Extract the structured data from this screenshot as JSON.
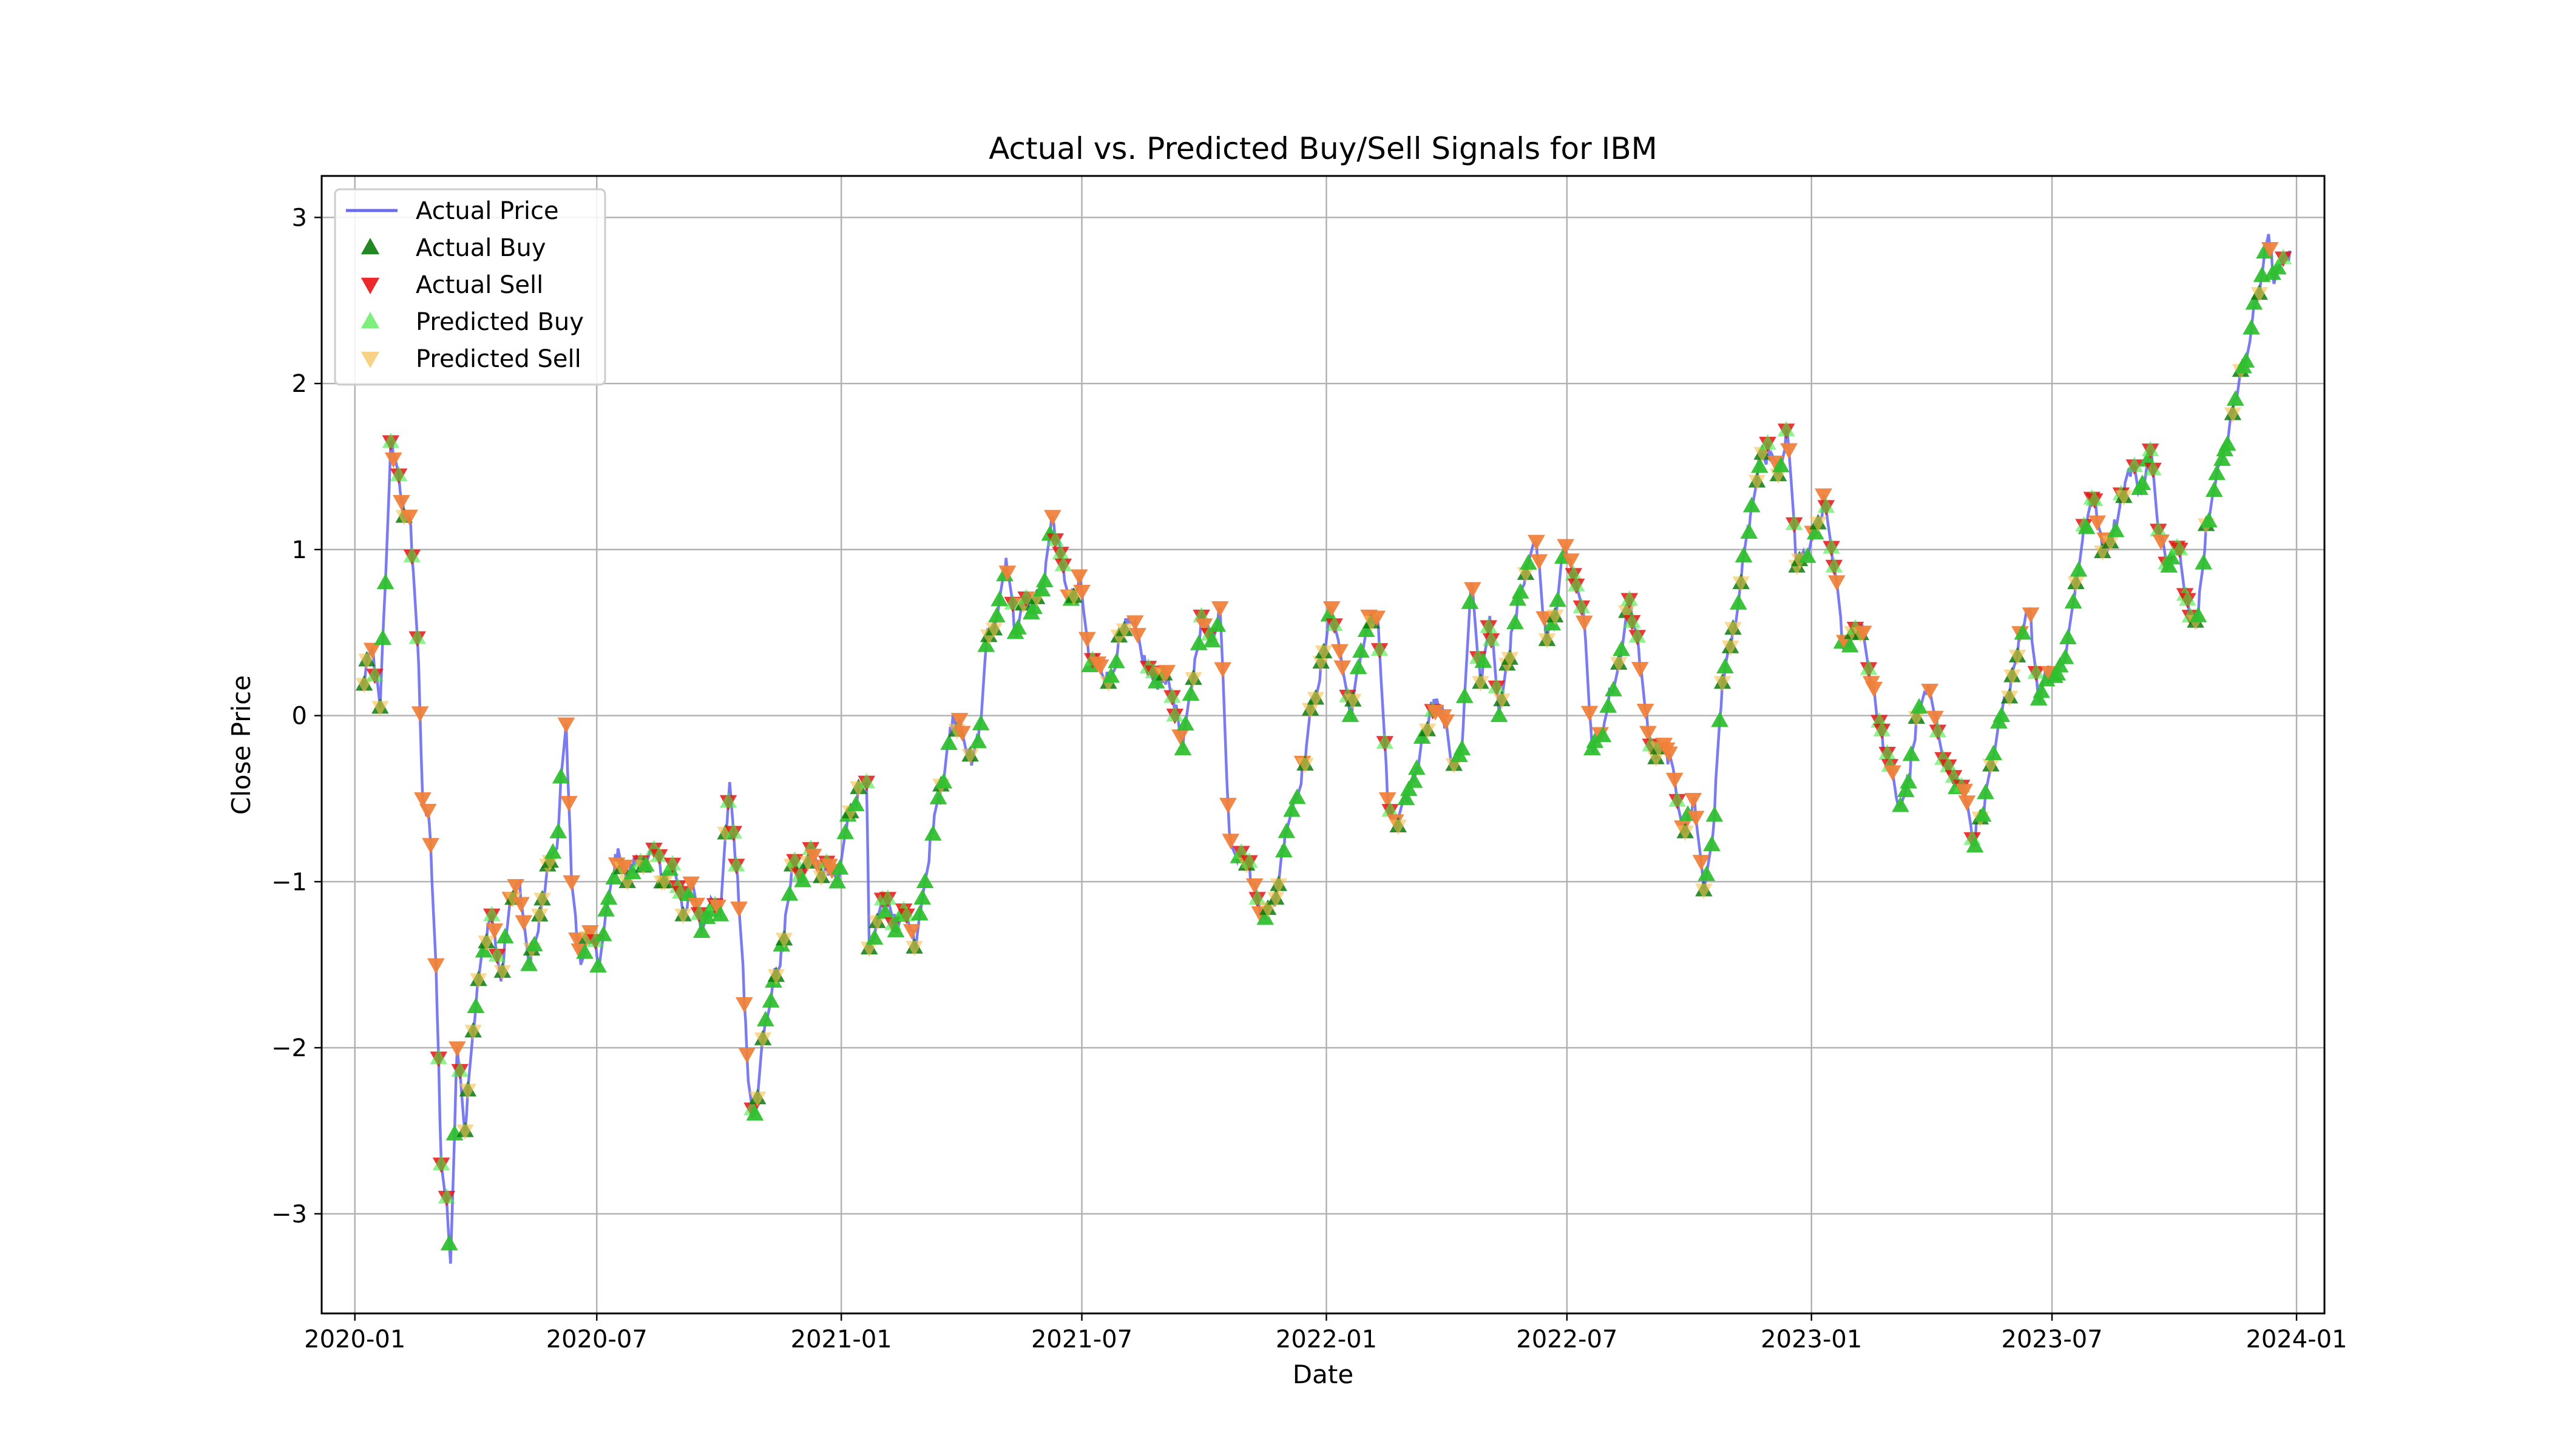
{
  "chart_data": {
    "type": "line",
    "title": "Actual vs. Predicted Buy/Sell Signals for IBM",
    "xlabel": "Date",
    "ylabel": "Close Price",
    "x_ticks": [
      "2020-01",
      "2020-07",
      "2021-01",
      "2021-07",
      "2022-01",
      "2022-07",
      "2023-01",
      "2023-07",
      "2024-01"
    ],
    "y_ticks": [
      "3",
      "2",
      "1",
      "0",
      "−1",
      "−2",
      "−3"
    ],
    "y_tick_values": [
      3,
      2,
      1,
      0,
      -1,
      -2,
      -3
    ],
    "xlim": [
      "2019-12-07",
      "2024-01-22"
    ],
    "ylim": [
      -3.6,
      3.25
    ],
    "grid": true,
    "legend_position": "top-left",
    "colors": {
      "actual_price": "#6b6bf0",
      "actual_buy": "#0b7a0b",
      "actual_sell": "#e81313",
      "predicted_buy": "#44e844",
      "predicted_sell": "#f5bf50"
    },
    "legend": [
      {
        "label": "Actual Price",
        "marker": "line",
        "color_key": "actual_price"
      },
      {
        "label": "Actual Buy",
        "marker": "triangle-up",
        "color_key": "actual_buy"
      },
      {
        "label": "Actual Sell",
        "marker": "triangle-down",
        "color_key": "actual_sell"
      },
      {
        "label": "Predicted Buy",
        "marker": "triangle-up",
        "color_key": "predicted_buy"
      },
      {
        "label": "Predicted Sell",
        "marker": "triangle-down",
        "color_key": "predicted_sell"
      }
    ],
    "series": [
      {
        "name": "Actual Price",
        "points": [
          [
            "2020-01-06",
            0.15
          ],
          [
            "2020-01-14",
            0.4
          ],
          [
            "2020-01-20",
            0.05
          ],
          [
            "2020-01-24",
            0.8
          ],
          [
            "2020-01-28",
            1.65
          ],
          [
            "2020-02-03",
            1.45
          ],
          [
            "2020-02-07",
            1.2
          ],
          [
            "2020-02-12",
            1.15
          ],
          [
            "2020-02-18",
            0.3
          ],
          [
            "2020-02-21",
            -0.5
          ],
          [
            "2020-02-26",
            -0.65
          ],
          [
            "2020-03-02",
            -1.5
          ],
          [
            "2020-03-06",
            -2.7
          ],
          [
            "2020-03-10",
            -2.9
          ],
          [
            "2020-03-13",
            -3.3
          ],
          [
            "2020-03-18",
            -2.0
          ],
          [
            "2020-03-24",
            -2.5
          ],
          [
            "2020-03-30",
            -1.9
          ],
          [
            "2020-04-06",
            -1.4
          ],
          [
            "2020-04-13",
            -1.2
          ],
          [
            "2020-04-20",
            -1.6
          ],
          [
            "2020-04-27",
            -1.1
          ],
          [
            "2020-05-04",
            -1.0
          ],
          [
            "2020-05-11",
            -1.5
          ],
          [
            "2020-05-18",
            -1.3
          ],
          [
            "2020-05-25",
            -0.9
          ],
          [
            "2020-06-01",
            -0.8
          ],
          [
            "2020-06-05",
            -0.3
          ],
          [
            "2020-06-08",
            -0.05
          ],
          [
            "2020-06-12",
            -1.0
          ],
          [
            "2020-06-19",
            -1.5
          ],
          [
            "2020-06-26",
            -1.3
          ],
          [
            "2020-07-03",
            -1.5
          ],
          [
            "2020-07-10",
            -1.1
          ],
          [
            "2020-07-17",
            -0.8
          ],
          [
            "2020-07-24",
            -1.0
          ],
          [
            "2020-07-31",
            -0.85
          ],
          [
            "2020-08-07",
            -0.9
          ],
          [
            "2020-08-14",
            -0.8
          ],
          [
            "2020-08-21",
            -1.0
          ],
          [
            "2020-08-28",
            -0.9
          ],
          [
            "2020-09-04",
            -1.2
          ],
          [
            "2020-09-11",
            -1.0
          ],
          [
            "2020-09-18",
            -1.3
          ],
          [
            "2020-09-25",
            -1.1
          ],
          [
            "2020-10-02",
            -1.2
          ],
          [
            "2020-10-09",
            -0.4
          ],
          [
            "2020-10-14",
            -0.9
          ],
          [
            "2020-10-19",
            -1.5
          ],
          [
            "2020-10-23",
            -2.2
          ],
          [
            "2020-10-28",
            -2.4
          ],
          [
            "2020-11-04",
            -1.9
          ],
          [
            "2020-11-11",
            -1.6
          ],
          [
            "2020-11-18",
            -1.4
          ],
          [
            "2020-11-25",
            -0.9
          ],
          [
            "2020-12-02",
            -1.0
          ],
          [
            "2020-12-09",
            -0.8
          ],
          [
            "2020-12-16",
            -0.95
          ],
          [
            "2020-12-23",
            -0.9
          ],
          [
            "2020-12-30",
            -1.0
          ],
          [
            "2021-01-06",
            -0.6
          ],
          [
            "2021-01-13",
            -0.5
          ],
          [
            "2021-01-20",
            -0.4
          ],
          [
            "2021-01-22",
            -1.4
          ],
          [
            "2021-01-29",
            -1.2
          ],
          [
            "2021-02-05",
            -1.1
          ],
          [
            "2021-02-12",
            -1.3
          ],
          [
            "2021-02-19",
            -1.2
          ],
          [
            "2021-02-26",
            -1.4
          ],
          [
            "2021-03-05",
            -1.0
          ],
          [
            "2021-03-12",
            -0.6
          ],
          [
            "2021-03-19",
            -0.4
          ],
          [
            "2021-03-26",
            0.0
          ],
          [
            "2021-04-02",
            -0.1
          ],
          [
            "2021-04-09",
            -0.3
          ],
          [
            "2021-04-16",
            -0.05
          ],
          [
            "2021-04-21",
            0.5
          ],
          [
            "2021-04-28",
            0.6
          ],
          [
            "2021-05-05",
            0.95
          ],
          [
            "2021-05-12",
            0.5
          ],
          [
            "2021-05-19",
            0.7
          ],
          [
            "2021-05-26",
            0.65
          ],
          [
            "2021-06-02",
            0.8
          ],
          [
            "2021-06-09",
            1.2
          ],
          [
            "2021-06-16",
            0.9
          ],
          [
            "2021-06-23",
            0.7
          ],
          [
            "2021-06-30",
            0.8
          ],
          [
            "2021-07-07",
            0.3
          ],
          [
            "2021-07-14",
            0.35
          ],
          [
            "2021-07-21",
            0.2
          ],
          [
            "2021-07-28",
            0.4
          ],
          [
            "2021-08-04",
            0.55
          ],
          [
            "2021-08-11",
            0.5
          ],
          [
            "2021-08-18",
            0.3
          ],
          [
            "2021-08-25",
            0.2
          ],
          [
            "2021-09-01",
            0.25
          ],
          [
            "2021-09-08",
            0.1
          ],
          [
            "2021-09-15",
            -0.2
          ],
          [
            "2021-09-22",
            0.2
          ],
          [
            "2021-09-29",
            0.6
          ],
          [
            "2021-10-06",
            0.45
          ],
          [
            "2021-10-13",
            0.65
          ],
          [
            "2021-10-20",
            -0.7
          ],
          [
            "2021-10-27",
            -0.85
          ],
          [
            "2021-11-03",
            -0.9
          ],
          [
            "2021-11-10",
            -1.1
          ],
          [
            "2021-11-17",
            -1.2
          ],
          [
            "2021-11-24",
            -1.1
          ],
          [
            "2021-12-01",
            -0.7
          ],
          [
            "2021-12-08",
            -0.5
          ],
          [
            "2021-12-15",
            -0.3
          ],
          [
            "2021-12-22",
            0.1
          ],
          [
            "2021-12-29",
            0.3
          ],
          [
            "2022-01-05",
            0.65
          ],
          [
            "2022-01-12",
            0.35
          ],
          [
            "2022-01-19",
            0.0
          ],
          [
            "2022-01-26",
            0.3
          ],
          [
            "2022-02-02",
            0.6
          ],
          [
            "2022-02-09",
            0.55
          ],
          [
            "2022-02-16",
            -0.5
          ],
          [
            "2022-02-23",
            -0.7
          ],
          [
            "2022-03-02",
            -0.5
          ],
          [
            "2022-03-09",
            -0.35
          ],
          [
            "2022-03-16",
            -0.1
          ],
          [
            "2022-03-23",
            0.1
          ],
          [
            "2022-03-30",
            0.0
          ],
          [
            "2022-04-06",
            -0.3
          ],
          [
            "2022-04-13",
            -0.2
          ],
          [
            "2022-04-20",
            0.8
          ],
          [
            "2022-04-27",
            0.2
          ],
          [
            "2022-05-04",
            0.6
          ],
          [
            "2022-05-11",
            0.0
          ],
          [
            "2022-05-18",
            0.35
          ],
          [
            "2022-05-25",
            0.7
          ],
          [
            "2022-06-01",
            0.9
          ],
          [
            "2022-06-08",
            1.05
          ],
          [
            "2022-06-15",
            0.5
          ],
          [
            "2022-06-22",
            0.6
          ],
          [
            "2022-06-29",
            1.0
          ],
          [
            "2022-07-06",
            0.85
          ],
          [
            "2022-07-13",
            0.65
          ],
          [
            "2022-07-20",
            -0.2
          ],
          [
            "2022-07-27",
            -0.1
          ],
          [
            "2022-08-03",
            0.15
          ],
          [
            "2022-08-10",
            0.3
          ],
          [
            "2022-08-17",
            0.7
          ],
          [
            "2022-08-24",
            0.4
          ],
          [
            "2022-08-31",
            -0.1
          ],
          [
            "2022-09-07",
            -0.25
          ],
          [
            "2022-09-14",
            -0.2
          ],
          [
            "2022-09-21",
            -0.45
          ],
          [
            "2022-09-28",
            -0.7
          ],
          [
            "2022-10-05",
            -0.5
          ],
          [
            "2022-10-12",
            -1.05
          ],
          [
            "2022-10-19",
            -0.7
          ],
          [
            "2022-10-26",
            0.2
          ],
          [
            "2022-11-02",
            0.45
          ],
          [
            "2022-11-09",
            0.8
          ],
          [
            "2022-11-16",
            1.2
          ],
          [
            "2022-11-23",
            1.5
          ],
          [
            "2022-11-30",
            1.6
          ],
          [
            "2022-12-07",
            1.45
          ],
          [
            "2022-12-14",
            1.7
          ],
          [
            "2022-12-21",
            0.9
          ],
          [
            "2022-12-28",
            0.95
          ],
          [
            "2023-01-04",
            1.1
          ],
          [
            "2023-01-11",
            1.3
          ],
          [
            "2023-01-18",
            0.9
          ],
          [
            "2023-01-25",
            0.4
          ],
          [
            "2023-02-01",
            0.5
          ],
          [
            "2023-02-08",
            0.55
          ],
          [
            "2023-02-15",
            0.2
          ],
          [
            "2023-02-22",
            -0.1
          ],
          [
            "2023-03-01",
            -0.3
          ],
          [
            "2023-03-08",
            -0.55
          ],
          [
            "2023-03-15",
            -0.4
          ],
          [
            "2023-03-22",
            0.0
          ],
          [
            "2023-03-29",
            0.15
          ],
          [
            "2023-04-05",
            0.0
          ],
          [
            "2023-04-12",
            -0.3
          ],
          [
            "2023-04-19",
            -0.4
          ],
          [
            "2023-04-26",
            -0.45
          ],
          [
            "2023-05-03",
            -0.75
          ],
          [
            "2023-05-10",
            -0.6
          ],
          [
            "2023-05-17",
            -0.3
          ],
          [
            "2023-05-24",
            0.0
          ],
          [
            "2023-05-31",
            0.2
          ],
          [
            "2023-06-07",
            0.5
          ],
          [
            "2023-06-14",
            0.65
          ],
          [
            "2023-06-21",
            0.1
          ],
          [
            "2023-06-28",
            0.3
          ],
          [
            "2023-07-05",
            0.25
          ],
          [
            "2023-07-12",
            0.4
          ],
          [
            "2023-07-19",
            0.8
          ],
          [
            "2023-07-26",
            1.15
          ],
          [
            "2023-08-02",
            1.3
          ],
          [
            "2023-08-09",
            1.0
          ],
          [
            "2023-08-16",
            1.1
          ],
          [
            "2023-08-23",
            1.35
          ],
          [
            "2023-08-30",
            1.5
          ],
          [
            "2023-09-06",
            1.35
          ],
          [
            "2023-09-13",
            1.6
          ],
          [
            "2023-09-20",
            1.1
          ],
          [
            "2023-09-27",
            0.9
          ],
          [
            "2023-10-04",
            1.0
          ],
          [
            "2023-10-11",
            0.7
          ],
          [
            "2023-10-18",
            0.55
          ],
          [
            "2023-10-25",
            1.15
          ],
          [
            "2023-11-01",
            1.4
          ],
          [
            "2023-11-08",
            1.6
          ],
          [
            "2023-11-15",
            1.9
          ],
          [
            "2023-11-22",
            2.1
          ],
          [
            "2023-11-29",
            2.4
          ],
          [
            "2023-12-06",
            2.65
          ],
          [
            "2023-12-11",
            2.9
          ],
          [
            "2023-12-15",
            2.6
          ],
          [
            "2023-12-20",
            2.75
          ],
          [
            "2023-12-27",
            2.8
          ]
        ]
      }
    ]
  }
}
